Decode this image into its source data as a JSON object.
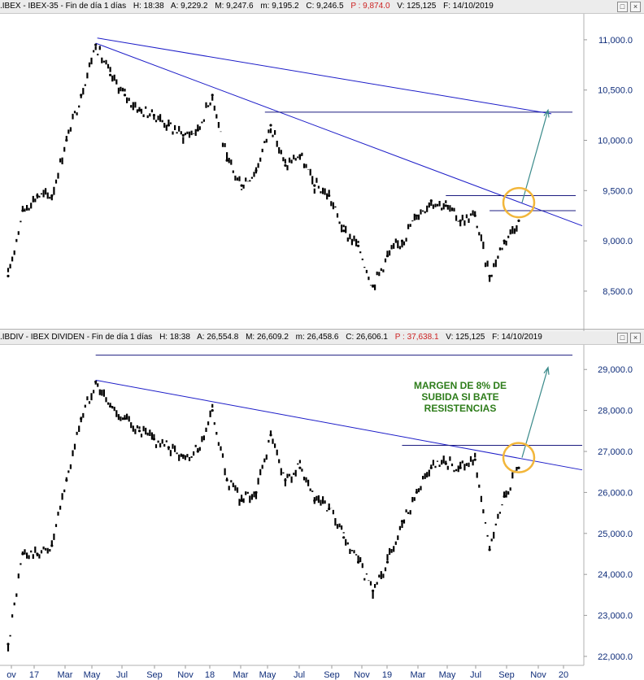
{
  "colors": {
    "price": "#000000",
    "trend": "#1c1cc8",
    "level": "#1c1c80",
    "arrow": "#3a8a8a",
    "circle": "#f2b63a",
    "annotation": "#2e7d1b",
    "axis_text": "#0f2d7a"
  },
  "panels": [
    {
      "header": {
        "name": ".IBEX - IBEX-35 - Fin de día 1 días",
        "H": "H: 18:38",
        "A": "A: 9,229.2",
        "M": "M: 9,247.6",
        "m": "m: 9,195.2",
        "C": "C: 9,246.5",
        "P": "P : 9,874.0",
        "V": "V: 125,125",
        "F": "F: 14/10/2019"
      }
    },
    {
      "header": {
        "name": ".IBDIV - IBEX DIVIDEN - Fin de día 1 días",
        "H": "H: 18:38",
        "A": "A: 26,554.8",
        "M": "M: 26,609.2",
        "m": "m: 26,458.6",
        "C": "C: 26,606.1",
        "P": "P : 37,638.1",
        "V": "V: 125,125",
        "F": "F: 14/10/2019"
      },
      "annotation": [
        "MARGEN DE 8% DE",
        "SUBIDA SI BATE",
        "RESISTENCIAS"
      ]
    }
  ],
  "x_axis": [
    "ov",
    "17",
    "Mar",
    "May",
    "Jul",
    "Sep",
    "Nov",
    "18",
    "Mar",
    "May",
    "Jul",
    "Sep",
    "Nov",
    "19",
    "Mar",
    "May",
    "Jul",
    "Sep",
    "Nov",
    "20"
  ],
  "chart_data": [
    {
      "type": "line",
      "title": "",
      "x": [
        "2016-11",
        "2016-12",
        "2017-01",
        "2017-02",
        "2017-03",
        "2017-04",
        "2017-05",
        "2017-06",
        "2017-07",
        "2017-08",
        "2017-09",
        "2017-10",
        "2017-11",
        "2017-12",
        "2018-01",
        "2018-02",
        "2018-03",
        "2018-04",
        "2018-05",
        "2018-06",
        "2018-07",
        "2018-08",
        "2018-09",
        "2018-10",
        "2018-11",
        "2018-12",
        "2019-01",
        "2019-02",
        "2019-03",
        "2019-04",
        "2019-05",
        "2019-06",
        "2019-07",
        "2019-08",
        "2019-09",
        "2019-10"
      ],
      "series": [
        {
          "values": [
            8650,
            9300,
            9450,
            9450,
            10000,
            10450,
            10950,
            10650,
            10450,
            10300,
            10250,
            10150,
            10050,
            10100,
            10450,
            9800,
            9550,
            9700,
            10150,
            9750,
            9850,
            9550,
            9450,
            9100,
            8950,
            8550,
            8850,
            9000,
            9250,
            9400,
            9350,
            9200,
            9250,
            8650,
            9000,
            9200
          ]
        }
      ],
      "ylim": [
        8200,
        11250
      ],
      "y_ticks": [
        "8,500.0",
        "9,000.0",
        "9,500.0",
        "10,000.0",
        "10,500.0",
        "11,000.0"
      ]
    },
    {
      "type": "line",
      "title": "",
      "x": [
        "2016-11",
        "2016-12",
        "2017-01",
        "2017-02",
        "2017-03",
        "2017-04",
        "2017-05",
        "2017-06",
        "2017-07",
        "2017-08",
        "2017-09",
        "2017-10",
        "2017-11",
        "2017-12",
        "2018-01",
        "2018-02",
        "2018-03",
        "2018-04",
        "2018-05",
        "2018-06",
        "2018-07",
        "2018-08",
        "2018-09",
        "2018-10",
        "2018-11",
        "2018-12",
        "2019-01",
        "2019-02",
        "2019-03",
        "2019-04",
        "2019-05",
        "2019-06",
        "2019-07",
        "2019-08",
        "2019-09",
        "2019-10"
      ],
      "series": [
        {
          "values": [
            22300,
            24500,
            24500,
            24700,
            26300,
            27800,
            28700,
            28100,
            27800,
            27500,
            27300,
            27100,
            26900,
            27000,
            28000,
            26300,
            25800,
            26000,
            27400,
            26300,
            26600,
            25800,
            25600,
            24900,
            24300,
            23600,
            24300,
            25300,
            26000,
            26600,
            26700,
            26600,
            26800,
            24600,
            25900,
            26600
          ]
        }
      ],
      "ylim": [
        21900,
        29600
      ],
      "y_ticks": [
        "22,000.0",
        "23,000.0",
        "24,000.0",
        "25,000.0",
        "26,000.0",
        "27,000.0",
        "28,000.0",
        "29,000.0"
      ]
    }
  ]
}
